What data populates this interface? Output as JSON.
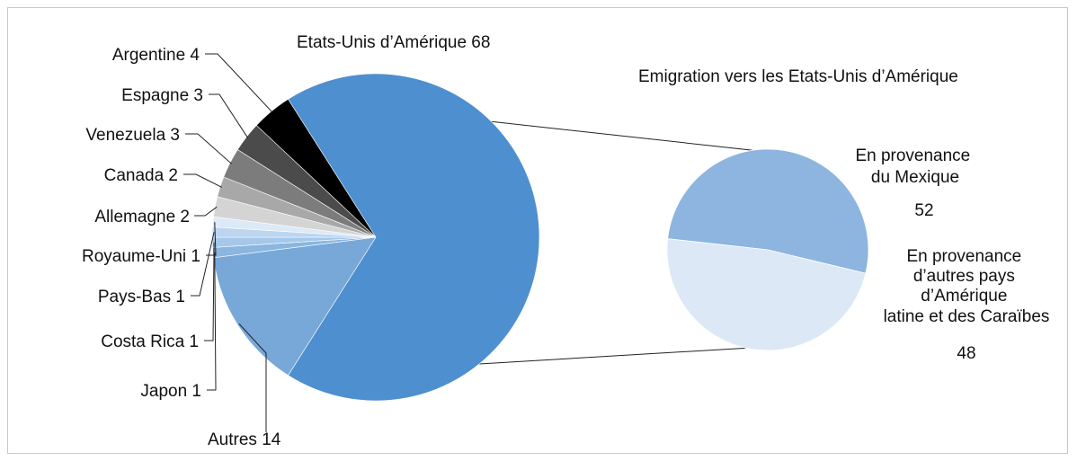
{
  "chart_data": {
    "type": "pie",
    "title": "",
    "main_pie": {
      "slices": [
        {
          "label": "Etats-Unis d’Amérique 68",
          "name": "Etats-Unis d’Amérique",
          "value": 68,
          "color": "#4e8fcf"
        },
        {
          "label": "Autres 14",
          "name": "Autres",
          "value": 14,
          "color": "#78a8d8"
        },
        {
          "label": "Japon 1",
          "name": "Japon",
          "value": 1,
          "color": "#8ab6e0"
        },
        {
          "label": "Costa Rica 1",
          "name": "Costa Rica",
          "value": 1,
          "color": "#a5c8ea"
        },
        {
          "label": "Pays-Bas 1",
          "name": "Pays-Bas",
          "value": 1,
          "color": "#bdd6ef"
        },
        {
          "label": "Royaume-Uni 1",
          "name": "Royaume-Uni",
          "value": 1,
          "color": "#dce9f7"
        },
        {
          "label": "Allemagne 2",
          "name": "Allemagne",
          "value": 2,
          "color": "#d4d4d4"
        },
        {
          "label": "Canada 2",
          "name": "Canada",
          "value": 2,
          "color": "#a8a8a8"
        },
        {
          "label": "Venezuela 3",
          "name": "Venezuela",
          "value": 3,
          "color": "#7c7c7c"
        },
        {
          "label": "Espagne 3",
          "name": "Espagne",
          "value": 3,
          "color": "#4b4b4b"
        },
        {
          "label": "Argentine 4",
          "name": "Argentine",
          "value": 4,
          "color": "#000000"
        }
      ]
    },
    "secondary_pie": {
      "title": "Emigration vers les Etats-Unis d’Amérique",
      "slices": [
        {
          "label_lines": [
            "En provenance",
            "du Mexique"
          ],
          "value_label": "52",
          "value": 52,
          "color": "#8db5df"
        },
        {
          "label_lines": [
            "En provenance",
            "d’autres pays",
            "d’Amérique",
            "latine et des Caraïbes"
          ],
          "value_label": "48",
          "value": 48,
          "color": "#dce8f6"
        }
      ]
    },
    "colors": {
      "frame": "#c8c8c8",
      "leader": "#222222",
      "connector": "#222222"
    }
  }
}
